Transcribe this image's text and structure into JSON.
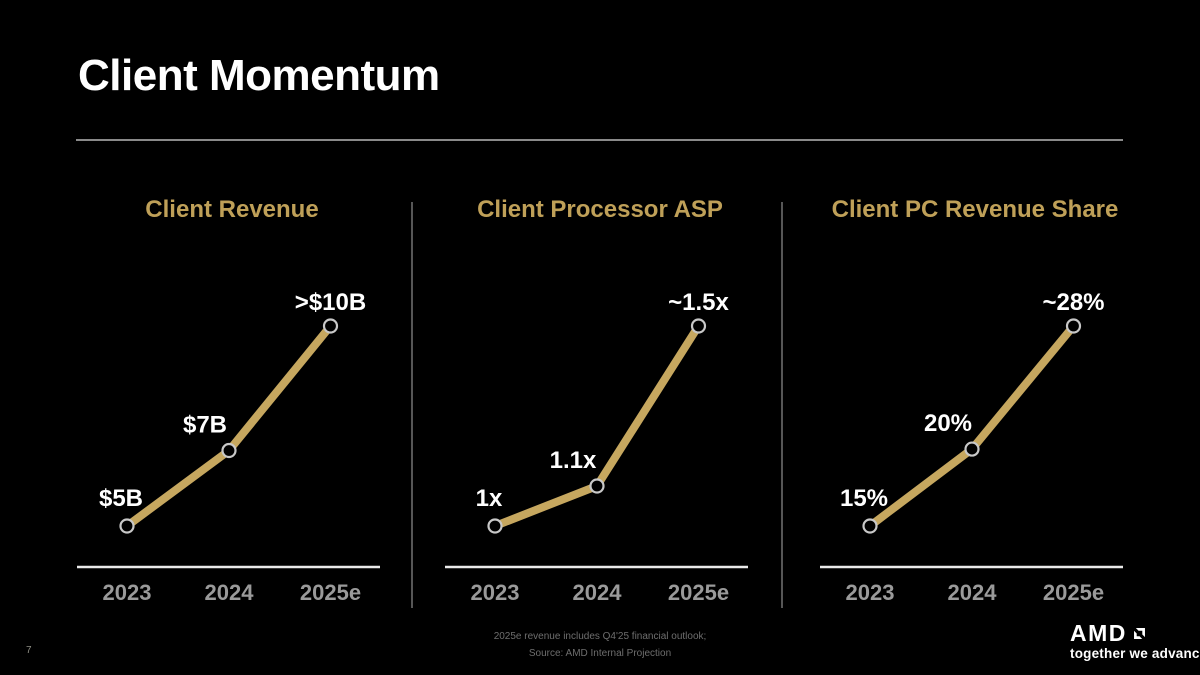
{
  "slide": {
    "title": "Client Momentum",
    "page_number": "7",
    "footnotes": [
      "2025e revenue includes Q4'25 financial outlook;",
      "Source: AMD Internal Projection"
    ],
    "logo": {
      "brand": "AMD",
      "tagline": "together we advance_"
    }
  },
  "colors": {
    "background": "#000000",
    "gold": "#C6A75F",
    "chart_title_gold": "#BFA058",
    "value_label_white": "#FFFFFF",
    "tick_label_gray": "#9A9A9A",
    "axis_line": "#EAEAEA",
    "marker_fill": "#000000",
    "marker_ring": "#C8C8C8",
    "divider_gray": "#565656",
    "footnote_gray": "#6E6E6E"
  },
  "chart_data": [
    {
      "type": "line",
      "title": "Client Revenue",
      "categories": [
        "2023",
        "2024",
        "2025e"
      ],
      "values": [
        5,
        7,
        10.3
      ],
      "value_labels": [
        "$5B",
        "$7B",
        ">$10B"
      ],
      "series_color": "#C6A75F",
      "ylim": [
        5,
        10.3
      ],
      "grid": false,
      "legend": false
    },
    {
      "type": "line",
      "title": "Client Processor ASP",
      "categories": [
        "2023",
        "2024",
        "2025e"
      ],
      "values": [
        1,
        1.1,
        1.5
      ],
      "value_labels": [
        "1x",
        "1.1x",
        "~1.5x"
      ],
      "series_color": "#C6A75F",
      "ylim": [
        1,
        1.5
      ],
      "grid": false,
      "legend": false
    },
    {
      "type": "line",
      "title": "Client PC Revenue Share",
      "categories": [
        "2023",
        "2024",
        "2025e"
      ],
      "values": [
        15,
        20,
        28
      ],
      "value_labels": [
        "15%",
        "20%",
        "~28%"
      ],
      "series_color": "#C6A75F",
      "ylim": [
        15,
        28
      ],
      "grid": false,
      "legend": false
    }
  ]
}
